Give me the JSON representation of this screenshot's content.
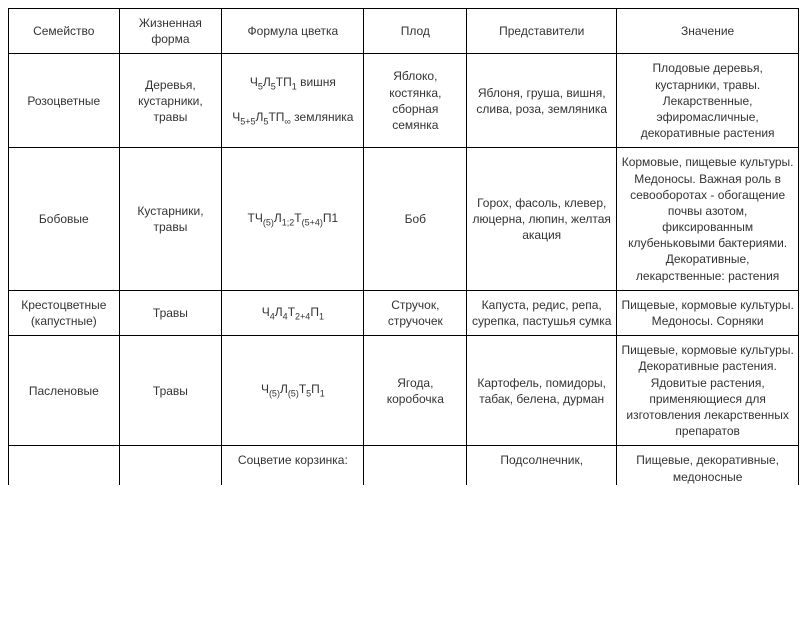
{
  "table": {
    "columns": [
      "Семейство",
      "Жизненная форма",
      "Формула цветка",
      "Плод",
      "Представители",
      "Значение"
    ],
    "column_widths_pct": [
      14,
      13,
      18,
      13,
      19,
      23
    ],
    "border_color": "#000000",
    "background_color": "#ffffff",
    "text_color": "#333333",
    "font_size_pt": 12,
    "rows": [
      {
        "family": "Розоцветные",
        "life_form": "Деревья, кустарники, травы",
        "formula_html": "Ч<sub>5</sub>Л<sub>5</sub>ТП<sub>1</sub> вишня<br><br>Ч<sub>5+5</sub>Л<sub>5</sub>ТП<sub>∞</sub> земляника",
        "fruit": "Яблоко, костянка, сборная семянка",
        "reps": "Яблоня, груша, вишня, слива, роза, земляника",
        "meaning": "Плодовые деревья, кустарники, травы. Лекарственные, эфиромасличные, декоративные растения"
      },
      {
        "family": "Бобовые",
        "life_form": "Кустарники, травы",
        "formula_html": "ТЧ<sub>(5)</sub>Л<sub>1;2</sub>Т<sub>(5+4)</sub>П1",
        "fruit": "Боб",
        "reps": "Горох, фасоль, клевер, люцерна, люпин, желтая акация",
        "meaning": "Кормовые, пищевые культуры. Медоносы. Важная роль в севооборотах - обогащение почвы азотом, фиксированным клубеньковыми бактериями. Декоративные, лекарственные: растения"
      },
      {
        "family": "Крестоцветные (капустные)",
        "life_form": "Травы",
        "formula_html": "Ч<sub>4</sub>Л<sub>4</sub>Т<sub>2+4</sub>П<sub>1</sub>",
        "fruit": "Стручок, стручочек",
        "reps": "Капуста, редис, репа, сурепка, пастушья сумка",
        "meaning": "Пищевые, кормовые культуры. Медоносы. Сорняки"
      },
      {
        "family": "Пасленовые",
        "life_form": "Травы",
        "formula_html": "Ч<sub>(5)</sub>Л<sub>(5)</sub>Т<sub>5</sub>П<sub>1</sub>",
        "fruit": "Ягода, коробочка",
        "reps": "Картофель, помидоры, табак, белена, дурман",
        "meaning": "Пищевые, кормовые культуры. Декоративные растения. Ядовитые растения, применяющиеся для изготовления лекарственных препаратов"
      },
      {
        "family": "",
        "life_form": "",
        "formula_html": "Соцветие корзинка:",
        "fruit": "",
        "reps": "Подсолнечник,",
        "meaning": "Пищевые, декоративные, медоносные",
        "cutoff": true
      }
    ]
  }
}
